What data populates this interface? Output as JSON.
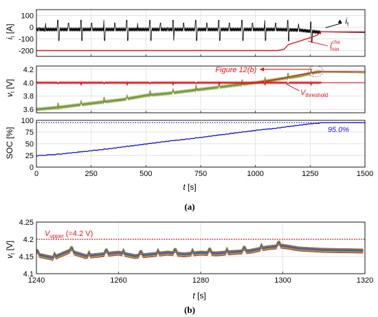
{
  "colors": {
    "current": "#000000",
    "max_current": "#e8141b",
    "voltage": "#7a9a3a",
    "threshold": "#e8141b",
    "soc": "#1a1ad6",
    "upper": "#e8141b"
  },
  "chart_data": [
    {
      "type": "line",
      "panel": "a-1",
      "ylabel": "i_t [A]",
      "xlim": [
        0,
        1500
      ],
      "ylim": [
        -250,
        150
      ],
      "xticks": [
        0,
        250,
        500,
        750,
        1000,
        1250,
        1500
      ],
      "yticks": [
        100,
        0,
        -100,
        -200
      ],
      "grid": true,
      "series": [
        {
          "name": "i_t",
          "style": "oscillating pulse current",
          "baseline": -20,
          "x": [
            0,
            100,
            200,
            300,
            400,
            500,
            600,
            700,
            800,
            900,
            1000,
            1100,
            1200,
            1300,
            1500
          ],
          "y": [
            -20,
            -20,
            -20,
            -20,
            -20,
            -20,
            -20,
            -20,
            -20,
            -20,
            -20,
            -20,
            -25,
            -45,
            -45
          ]
        },
        {
          "name": "I_max^cha",
          "x": [
            0,
            1080,
            1100,
            1130,
            1150,
            1200,
            1250,
            1280,
            1300,
            1310,
            1500
          ],
          "y": [
            -200,
            -200,
            -200,
            -190,
            -150,
            -120,
            -90,
            -70,
            -40,
            -40,
            -40
          ]
        }
      ],
      "annotations": {
        "i_t_label": "i",
        "i_t_sub": "t",
        "imax_label": "I",
        "imax_sup": "cha",
        "imax_sub": "max"
      }
    },
    {
      "type": "line",
      "panel": "a-2",
      "ylabel": "v_t [V]",
      "xlim": [
        0,
        1500
      ],
      "ylim": [
        3.55,
        4.25
      ],
      "yticks": [
        4.2,
        4.0,
        3.8,
        3.6
      ],
      "grid": true,
      "series": [
        {
          "name": "v_t",
          "x": [
            0,
            100,
            200,
            300,
            400,
            500,
            600,
            700,
            800,
            900,
            1000,
            1100,
            1200,
            1280,
            1300,
            1500
          ],
          "y": [
            3.6,
            3.63,
            3.67,
            3.71,
            3.75,
            3.81,
            3.84,
            3.88,
            3.92,
            3.96,
            4.0,
            4.05,
            4.1,
            4.16,
            4.16,
            4.15
          ]
        },
        {
          "name": "V_threshold",
          "x": [
            0,
            1000,
            1100,
            1200,
            1300,
            1500
          ],
          "y": [
            4.0,
            4.0,
            4.05,
            4.12,
            4.17,
            4.17
          ]
        },
        {
          "name": "threshold-low",
          "x": [
            0,
            1500
          ],
          "y": [
            4.0,
            4.0
          ]
        }
      ],
      "annotations": {
        "figure_ref": "Figure 12(b)",
        "threshold_label": "V",
        "threshold_sub": "threshold"
      }
    },
    {
      "type": "line",
      "panel": "a-3",
      "ylabel": "SOC [%]",
      "xlabel": "t [s]",
      "xlim": [
        0,
        1500
      ],
      "ylim": [
        0,
        100
      ],
      "yticks": [
        100,
        75,
        50,
        25,
        0
      ],
      "xticks": [
        0,
        250,
        500,
        750,
        1000,
        1250,
        1500
      ],
      "grid": true,
      "series": [
        {
          "name": "SOC",
          "x": [
            0,
            100,
            200,
            300,
            400,
            500,
            600,
            700,
            800,
            900,
            1000,
            1100,
            1200,
            1250,
            1300,
            1500
          ],
          "y": [
            25,
            28,
            33,
            38,
            44,
            50,
            56,
            61,
            67,
            73,
            79,
            84,
            90,
            93,
            95,
            95
          ]
        },
        {
          "name": "SOC target",
          "x": [
            0,
            1500
          ],
          "y": [
            95,
            95
          ]
        }
      ],
      "annotations": {
        "soc_final": "95.0%"
      }
    },
    {
      "type": "line",
      "panel": "b",
      "ylabel": "v_t [V]",
      "xlabel": "t [s]",
      "xlim": [
        1240,
        1320
      ],
      "ylim": [
        4.1,
        4.25
      ],
      "xticks": [
        1240,
        1260,
        1280,
        1300,
        1320
      ],
      "yticks": [
        4.25,
        4.2,
        4.15,
        4.1
      ],
      "grid": true,
      "series": [
        {
          "name": "cell voltages (band)",
          "x": [
            1240,
            1244,
            1248,
            1252,
            1256,
            1260,
            1264,
            1268,
            1272,
            1276,
            1280,
            1284,
            1288,
            1292,
            1296,
            1300,
            1304,
            1310,
            1320
          ],
          "y": [
            4.155,
            4.145,
            4.165,
            4.15,
            4.155,
            4.16,
            4.15,
            4.155,
            4.16,
            4.155,
            4.16,
            4.158,
            4.162,
            4.165,
            4.175,
            4.18,
            4.172,
            4.168,
            4.166
          ]
        },
        {
          "name": "V_upper",
          "x": [
            1240,
            1320
          ],
          "y": [
            4.2,
            4.2
          ]
        }
      ],
      "annotations": {
        "upper_label": "V",
        "upper_sub": "upper",
        "upper_value": " (=4.2 V)"
      }
    }
  ],
  "captions": {
    "a": "(a)",
    "b": "(b)"
  },
  "labels": {
    "a1_y_main": "i",
    "a1_y_sub": "t",
    "a1_y_unit": " [A]",
    "a2_y_main": "v",
    "a2_y_sub": "t",
    "a2_y_unit": " [V]",
    "a3_y": "SOC [%]",
    "x_main": "t",
    "x_unit": " [s]",
    "b_y_main": "v",
    "b_y_sub": "t",
    "b_y_unit": " [V]"
  }
}
